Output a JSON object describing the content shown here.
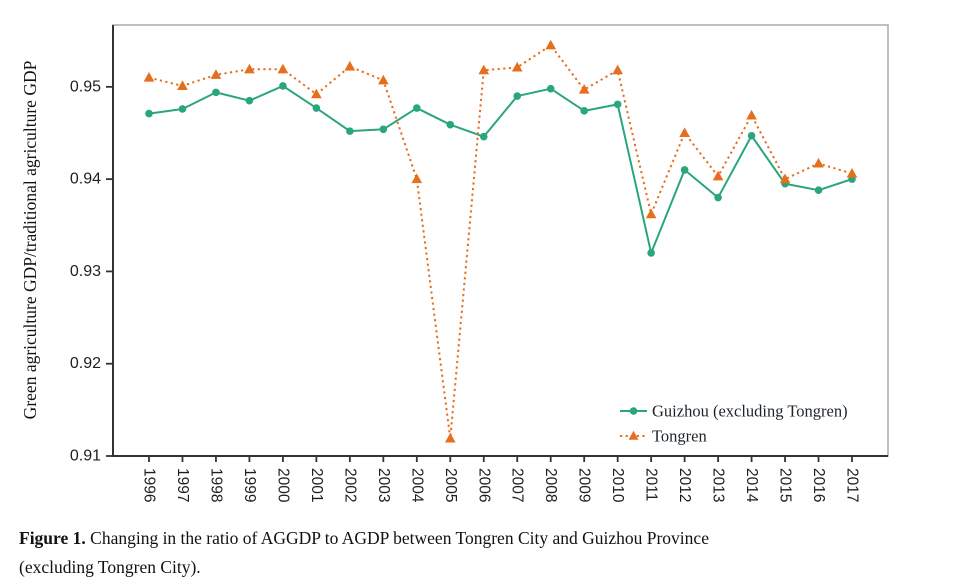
{
  "chart_data": {
    "type": "line",
    "title": "",
    "xlabel": "",
    "ylabel": "Green agriculture GDP/traditional agriculture GDP",
    "x": [
      "1996",
      "1997",
      "1998",
      "1999",
      "2000",
      "2001",
      "2002",
      "2003",
      "2004",
      "2005",
      "2006",
      "2007",
      "2008",
      "2009",
      "2010",
      "2011",
      "2012",
      "2013",
      "2014",
      "2015",
      "2016",
      "2017"
    ],
    "ylim": [
      0.91,
      0.9567
    ],
    "yticks": [
      0.91,
      0.92,
      0.93,
      0.94,
      0.95
    ],
    "ytick_labels": [
      "0.91",
      "0.92",
      "0.93",
      "0.94",
      "0.95"
    ],
    "grid": false,
    "legend_position": "inside-bottom-right",
    "series": [
      {
        "id": "guizhou",
        "name": "Guizhou (excluding Tongren)",
        "marker": "circle",
        "line": "solid",
        "color": "#2aa67a",
        "values": [
          0.9471,
          0.9476,
          0.9494,
          0.9485,
          0.9501,
          0.9477,
          0.9452,
          0.9454,
          0.9477,
          0.9459,
          0.9446,
          0.949,
          0.9498,
          0.9474,
          0.9481,
          0.932,
          0.941,
          0.938,
          0.9447,
          0.9395,
          0.9388,
          0.94
        ]
      },
      {
        "id": "tongren",
        "name": "Tongren",
        "marker": "triangle",
        "line": "dashed",
        "color": "#e56f1e",
        "values": [
          0.951,
          0.9501,
          0.9513,
          0.9519,
          0.9519,
          0.9492,
          0.9522,
          0.9507,
          0.94,
          0.9119,
          0.9518,
          0.9521,
          0.9545,
          0.9497,
          0.9518,
          0.9362,
          0.945,
          0.9403,
          0.9469,
          0.94,
          0.9417,
          0.9406
        ]
      }
    ],
    "colors": {
      "axis": "#333333",
      "plot_border": "#ababab",
      "tick_text": "#1f1f1f",
      "legend_text": "#1c242b"
    }
  },
  "caption": {
    "label": "Figure 1.",
    "line1": "Changing in the ratio of AGGDP to AGDP between Tongren City and Guizhou Province",
    "line2": "(excluding Tongren City)."
  }
}
